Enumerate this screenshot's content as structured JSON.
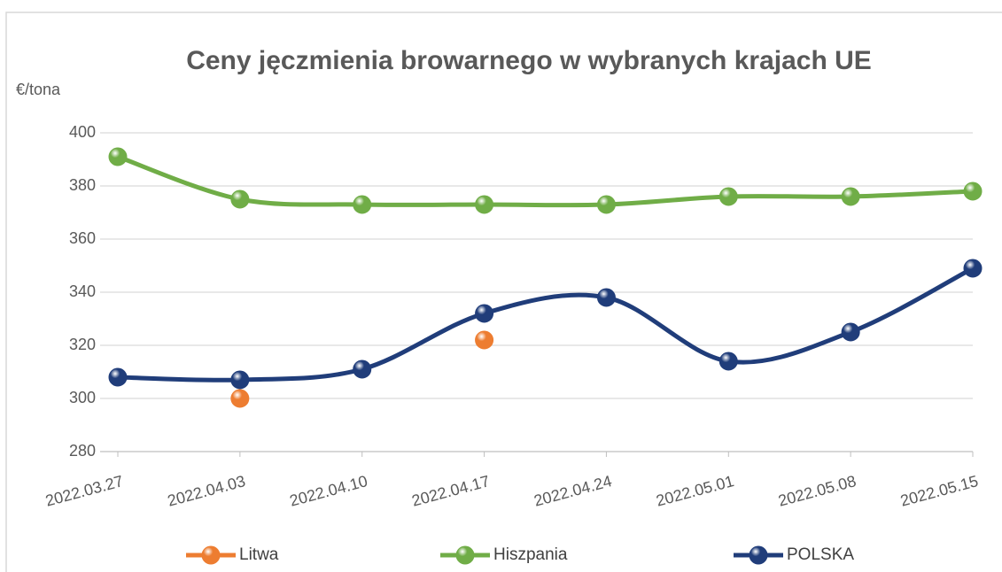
{
  "chart_data": {
    "type": "line",
    "title": "Ceny jęczmienia browarnego w wybranych krajach  UE",
    "y_label": "€/tona",
    "categories": [
      "2022.03.27",
      "2022.04.03",
      "2022.04.10",
      "2022.04.17",
      "2022.04.24",
      "2022.05.01",
      "2022.05.08",
      "2022.05.15"
    ],
    "series": [
      {
        "name": "Litwa",
        "color": "#ed7d31",
        "values": [
          null,
          300,
          null,
          322,
          null,
          null,
          null,
          null
        ]
      },
      {
        "name": "Hiszpania",
        "color": "#70ad47",
        "values": [
          391,
          375,
          373,
          373,
          373,
          376,
          376,
          378
        ]
      },
      {
        "name": "POLSKA",
        "color": "#203d7a",
        "values": [
          308,
          307,
          311,
          332,
          338,
          314,
          325,
          349
        ]
      }
    ],
    "ylim": [
      280,
      400
    ],
    "yticks": [
      280,
      300,
      320,
      340,
      360,
      380,
      400
    ],
    "grid": true,
    "smooth": true,
    "legend": "bottom"
  }
}
